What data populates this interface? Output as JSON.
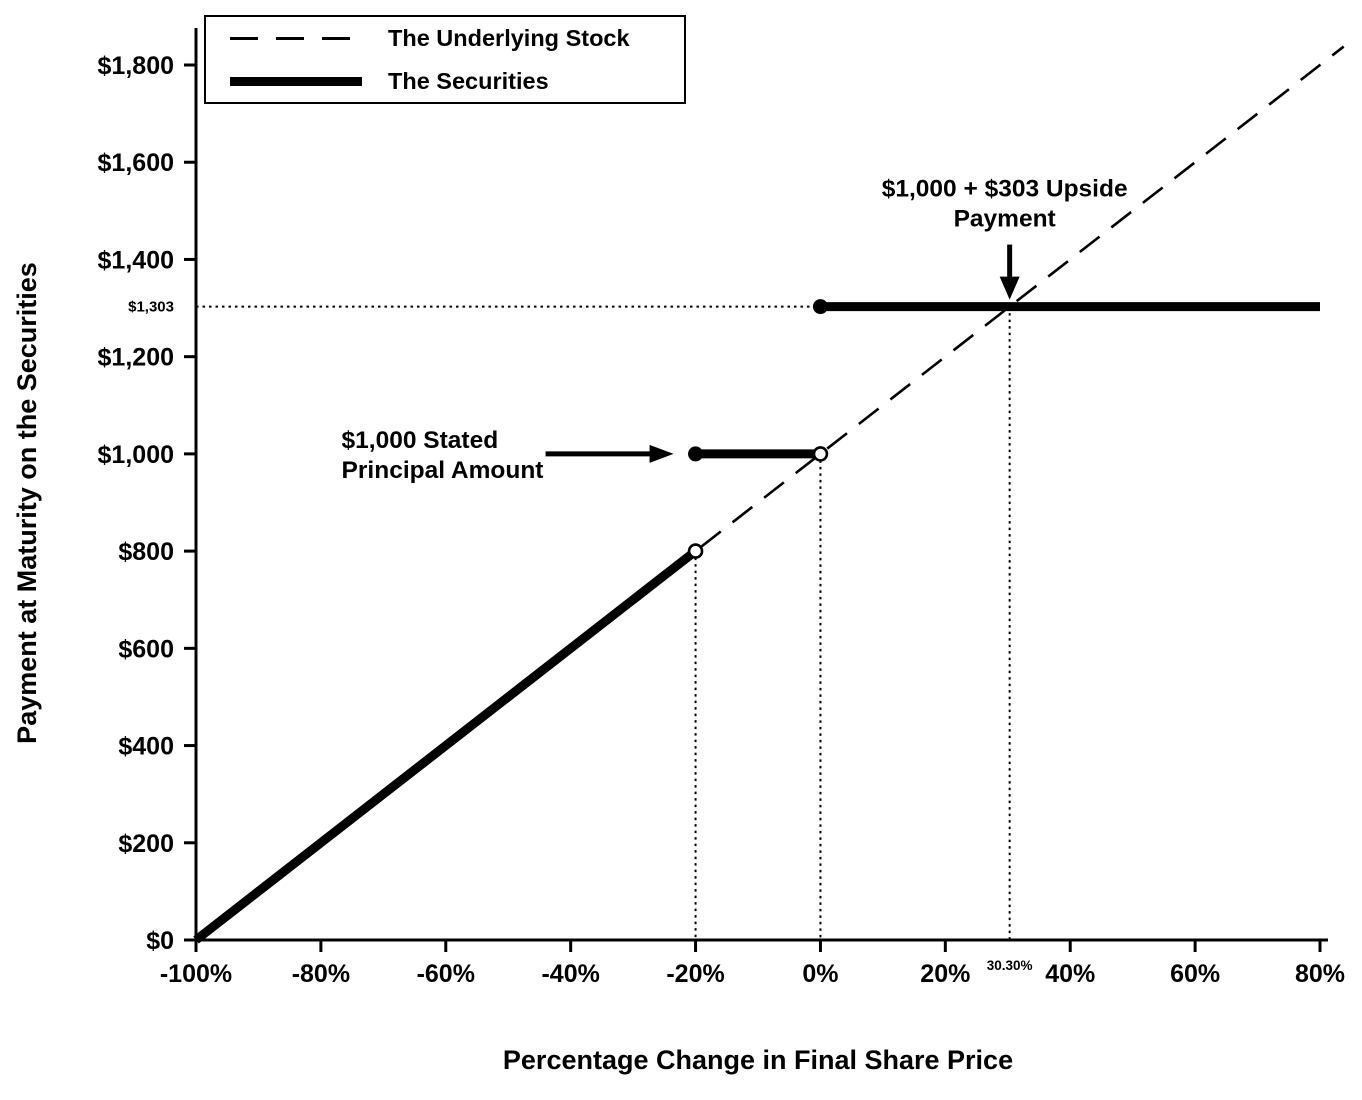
{
  "figure": {
    "background": "#ffffff",
    "foreground": "#000000"
  },
  "chart_data": {
    "type": "line",
    "title": "",
    "xlabel": "Percentage Change in Final Share Price",
    "ylabel": "Payment at Maturity on the Securities",
    "xlim": [
      -100,
      80
    ],
    "ylim": [
      0,
      1800
    ],
    "grid": false,
    "legend_position": "top-left",
    "x_ticks": [
      {
        "value": -100,
        "label": "-100%"
      },
      {
        "value": -80,
        "label": "-80%"
      },
      {
        "value": -60,
        "label": "-60%"
      },
      {
        "value": -40,
        "label": "-40%"
      },
      {
        "value": -20,
        "label": "-20%"
      },
      {
        "value": 0,
        "label": "0%"
      },
      {
        "value": 20,
        "label": "20%"
      },
      {
        "value": 30.3,
        "label": "30.30%",
        "special": true
      },
      {
        "value": 40,
        "label": "40%"
      },
      {
        "value": 60,
        "label": "60%"
      },
      {
        "value": 80,
        "label": "80%"
      }
    ],
    "y_ticks": [
      {
        "value": 0,
        "label": "$0"
      },
      {
        "value": 200,
        "label": "$200"
      },
      {
        "value": 400,
        "label": "$400"
      },
      {
        "value": 600,
        "label": "$600"
      },
      {
        "value": 800,
        "label": "$800"
      },
      {
        "value": 1000,
        "label": "$1,000"
      },
      {
        "value": 1200,
        "label": "$1,200"
      },
      {
        "value": 1303,
        "label": "$1,303",
        "special": true
      },
      {
        "value": 1400,
        "label": "$1,400"
      },
      {
        "value": 1600,
        "label": "$1,600"
      },
      {
        "value": 1800,
        "label": "$1,800"
      }
    ],
    "series": [
      {
        "name": "The Underlying Stock",
        "style": "dashed",
        "points": [
          [
            -100,
            0
          ],
          [
            80,
            1800
          ]
        ]
      },
      {
        "name": "The Securities",
        "style": "thick-solid",
        "segments": [
          {
            "points": [
              [
                -100,
                0
              ],
              [
                -20,
                800
              ]
            ],
            "end_marker": "open"
          },
          {
            "points": [
              [
                -20,
                1000
              ],
              [
                0,
                1000
              ]
            ],
            "start_marker": "filled",
            "end_marker": "open"
          },
          {
            "points": [
              [
                0,
                1303
              ],
              [
                80,
                1303
              ]
            ],
            "start_marker": "filled"
          }
        ]
      }
    ],
    "markers": [
      {
        "x": -20,
        "y": 800,
        "type": "open"
      },
      {
        "x": -20,
        "y": 1000,
        "type": "filled"
      },
      {
        "x": 0,
        "y": 1000,
        "type": "open"
      },
      {
        "x": 0,
        "y": 1303,
        "type": "filled"
      }
    ],
    "guides": {
      "horizontal_dotted": [
        {
          "y": 1303,
          "x_left": -100,
          "x_right": 0
        }
      ],
      "vertical_dotted": [
        {
          "x": -20,
          "y_top": 800
        },
        {
          "x": 0,
          "y_top": 1000
        },
        {
          "x": 30.3,
          "y_top": 1303
        }
      ]
    },
    "annotations": [
      {
        "lines": [
          "$1,000 + $303 Upside",
          "Payment"
        ],
        "target": {
          "x": 30.3,
          "y": 1303
        },
        "arrow": "down"
      },
      {
        "lines": [
          "$1,000 Stated",
          "Principal Amount"
        ],
        "target": {
          "x": -20,
          "y": 1000
        },
        "arrow": "right"
      }
    ]
  }
}
